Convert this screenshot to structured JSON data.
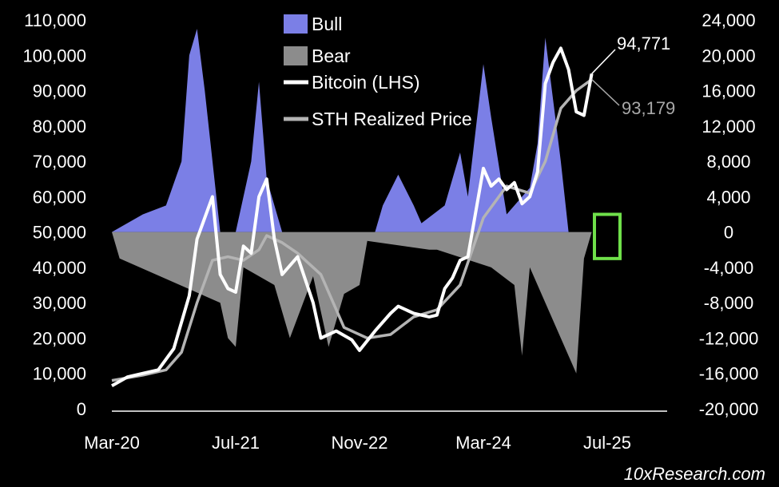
{
  "chart_data": {
    "type": "line",
    "title": "",
    "left_axis": {
      "label": "",
      "ylim": [
        0,
        110000
      ],
      "ticks": [
        "110,000",
        "100,000",
        "90,000",
        "80,000",
        "70,000",
        "60,000",
        "50,000",
        "40,000",
        "30,000",
        "20,000",
        "10,000",
        "0"
      ]
    },
    "right_axis": {
      "label": "",
      "ylim": [
        -20000,
        24000
      ],
      "ticks": [
        "24,000",
        "20,000",
        "16,000",
        "12,000",
        "8,000",
        "4,000",
        "0",
        "-4,000",
        "-8,000",
        "-12,000",
        "-16,000",
        "-20,000"
      ]
    },
    "x_axis": {
      "range": [
        "2020-03",
        "2025-07"
      ],
      "ticks": [
        "Mar-20",
        "Jul-21",
        "Nov-22",
        "Mar-24",
        "Jul-25"
      ]
    },
    "legend": {
      "placement": "top-center",
      "items": [
        {
          "label": "Bull",
          "color": "#7b7fe6",
          "swatch": "box"
        },
        {
          "label": "Bear",
          "color": "#8c8c8c",
          "swatch": "box"
        },
        {
          "label": "Bitcoin (LHS)",
          "color": "#ffffff",
          "swatch": "line"
        },
        {
          "label": "STH Realized Price",
          "color": "#b4b4b4",
          "swatch": "line"
        }
      ]
    },
    "annotations": [
      {
        "text": "94,771",
        "color": "#ffffff"
      },
      {
        "text": "93,179",
        "color": "#a8a8a8"
      }
    ],
    "highlight_box_color": "#6fe04a",
    "series": [
      {
        "name": "Bitcoin (LHS)",
        "axis": "left",
        "color": "#ffffff",
        "x": [
          "2020-03",
          "2020-05",
          "2020-07",
          "2020-09",
          "2020-11",
          "2021-01",
          "2021-02",
          "2021-04",
          "2021-05",
          "2021-06",
          "2021-07",
          "2021-08",
          "2021-09",
          "2021-10",
          "2021-11",
          "2021-12",
          "2022-01",
          "2022-03",
          "2022-05",
          "2022-06",
          "2022-08",
          "2022-10",
          "2022-11",
          "2023-01",
          "2023-03",
          "2023-04",
          "2023-06",
          "2023-08",
          "2023-09",
          "2023-10",
          "2023-11",
          "2023-12",
          "2024-01",
          "2024-03",
          "2024-04",
          "2024-05",
          "2024-06",
          "2024-07",
          "2024-08",
          "2024-09",
          "2024-10",
          "2024-11",
          "2024-12",
          "2025-01",
          "2025-02",
          "2025-03",
          "2025-04",
          "2025-05"
        ],
        "values": [
          6500,
          9000,
          10000,
          11000,
          17000,
          32000,
          48000,
          60000,
          38000,
          34000,
          33000,
          46000,
          44000,
          60000,
          65000,
          48000,
          38000,
          43000,
          30000,
          20000,
          22000,
          19500,
          16500,
          22000,
          27000,
          29000,
          27000,
          26000,
          26500,
          34000,
          37000,
          42000,
          43000,
          68000,
          63000,
          65000,
          62000,
          64000,
          58000,
          60000,
          67000,
          92000,
          98000,
          102000,
          96000,
          84000,
          83000,
          94771
        ]
      },
      {
        "name": "STH Realized Price",
        "axis": "left",
        "color": "#b4b4b4",
        "x": [
          "2020-03",
          "2020-07",
          "2020-10",
          "2020-12",
          "2021-02",
          "2021-04",
          "2021-06",
          "2021-08",
          "2021-10",
          "2021-11",
          "2022-01",
          "2022-03",
          "2022-06",
          "2022-09",
          "2022-12",
          "2023-03",
          "2023-06",
          "2023-09",
          "2023-12",
          "2024-03",
          "2024-06",
          "2024-09",
          "2024-11",
          "2025-01",
          "2025-03",
          "2025-05"
        ],
        "values": [
          8000,
          9500,
          11000,
          16000,
          30000,
          42000,
          43000,
          42000,
          45000,
          49000,
          47000,
          44000,
          38000,
          23000,
          20000,
          21000,
          26000,
          28000,
          35000,
          54000,
          63000,
          61000,
          70000,
          85000,
          90000,
          93179
        ]
      },
      {
        "name": "Bull",
        "axis": "right",
        "color": "#7b7fe6",
        "x": [
          "2020-03",
          "2020-07",
          "2020-10",
          "2020-12",
          "2021-01",
          "2021-02",
          "2021-03",
          "2021-05",
          "2021-07",
          "2021-09",
          "2021-10",
          "2021-11",
          "2022-01",
          "2023-01",
          "2023-02",
          "2023-04",
          "2023-06",
          "2023-07",
          "2023-10",
          "2023-12",
          "2024-01",
          "2024-03",
          "2024-04",
          "2024-06",
          "2024-09",
          "2024-10",
          "2024-11",
          "2024-12",
          "2025-01",
          "2025-02"
        ],
        "values": [
          0,
          2000,
          3000,
          8000,
          20000,
          23000,
          16000,
          0,
          0,
          8000,
          17000,
          6000,
          0,
          0,
          3000,
          6500,
          3000,
          1000,
          3000,
          9000,
          4000,
          19000,
          13000,
          2000,
          5000,
          10000,
          22000,
          15000,
          8000,
          0
        ]
      },
      {
        "name": "Bear",
        "axis": "right",
        "color": "#8c8c8c",
        "x": [
          "2020-03",
          "2020-04",
          "2021-05",
          "2021-06",
          "2021-07",
          "2021-08",
          "2021-12",
          "2022-02",
          "2022-05",
          "2022-07",
          "2022-09",
          "2022-11",
          "2022-12",
          "2023-08",
          "2023-09",
          "2024-04",
          "2024-07",
          "2024-08",
          "2024-09",
          "2025-02",
          "2025-03",
          "2025-04",
          "2025-05"
        ],
        "values": [
          0,
          -3000,
          -8000,
          -12000,
          -13000,
          -4000,
          -6000,
          -12000,
          -5000,
          -13000,
          -7000,
          -6000,
          -1000,
          -2000,
          -2000,
          -4000,
          -6000,
          -14000,
          -4000,
          -14000,
          -16000,
          -3000,
          0
        ]
      }
    ]
  }
}
